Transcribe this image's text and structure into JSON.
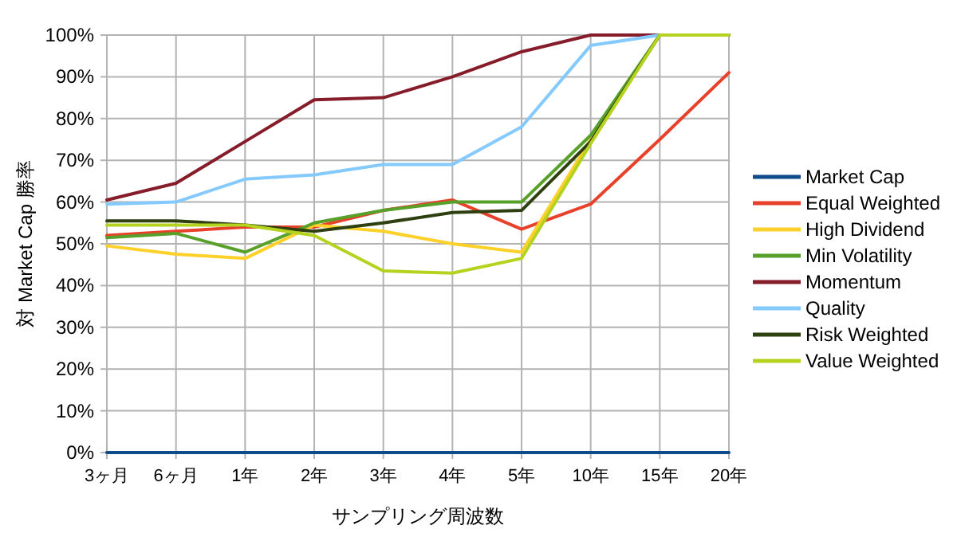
{
  "chart_data": {
    "type": "line",
    "xlabel": "サンプリング周波数",
    "ylabel": "対 Market Cap 勝率",
    "categories": [
      "3ヶ月",
      "6ヶ月",
      "1年",
      "2年",
      "3年",
      "4年",
      "5年",
      "10年",
      "15年",
      "20年"
    ],
    "ylim": [
      0,
      100
    ],
    "yticks": [
      {
        "value": 0,
        "label": "0%"
      },
      {
        "value": 10,
        "label": "10%"
      },
      {
        "value": 20,
        "label": "20%"
      },
      {
        "value": 30,
        "label": "30%"
      },
      {
        "value": 40,
        "label": "40%"
      },
      {
        "value": 50,
        "label": "50%"
      },
      {
        "value": 60,
        "label": "60%"
      },
      {
        "value": 70,
        "label": "70%"
      },
      {
        "value": 80,
        "label": "80%"
      },
      {
        "value": 90,
        "label": "90%"
      },
      {
        "value": 100,
        "label": "100%"
      }
    ],
    "grid": true,
    "legend": "right",
    "marker": "none",
    "line_style": "solid",
    "series": [
      {
        "name": "Market Cap",
        "color": "#0f4a8a",
        "values": [
          0,
          0,
          0,
          0,
          0,
          0,
          0,
          0,
          0,
          0
        ]
      },
      {
        "name": "Equal Weighted",
        "color": "#e8412a",
        "values": [
          52,
          53,
          54,
          54,
          58,
          60.5,
          53.5,
          59.5,
          75,
          91
        ]
      },
      {
        "name": "High Dividend",
        "color": "#fdd02a",
        "values": [
          49.5,
          47.5,
          46.5,
          54.5,
          53,
          50,
          48,
          75,
          100,
          100
        ]
      },
      {
        "name": "Min Volatility",
        "color": "#57a02a",
        "values": [
          51.5,
          52.5,
          48,
          55,
          58,
          60,
          60,
          76,
          100,
          100
        ]
      },
      {
        "name": "Momentum",
        "color": "#861c2a",
        "values": [
          60.5,
          64.5,
          74.5,
          84.5,
          85,
          90,
          96,
          100,
          100,
          null
        ]
      },
      {
        "name": "Quality",
        "color": "#84caff",
        "values": [
          59.5,
          60,
          65.5,
          66.5,
          69,
          69,
          78,
          97.5,
          100,
          null
        ]
      },
      {
        "name": "Risk Weighted",
        "color": "#2f4010",
        "values": [
          55.5,
          55.5,
          54.5,
          53,
          55,
          57.5,
          58,
          74.5,
          100,
          100
        ]
      },
      {
        "name": "Value Weighted",
        "color": "#b5d21e",
        "values": [
          54.5,
          54.5,
          54.5,
          52,
          43.5,
          43,
          46.5,
          74,
          100,
          100
        ]
      }
    ]
  }
}
